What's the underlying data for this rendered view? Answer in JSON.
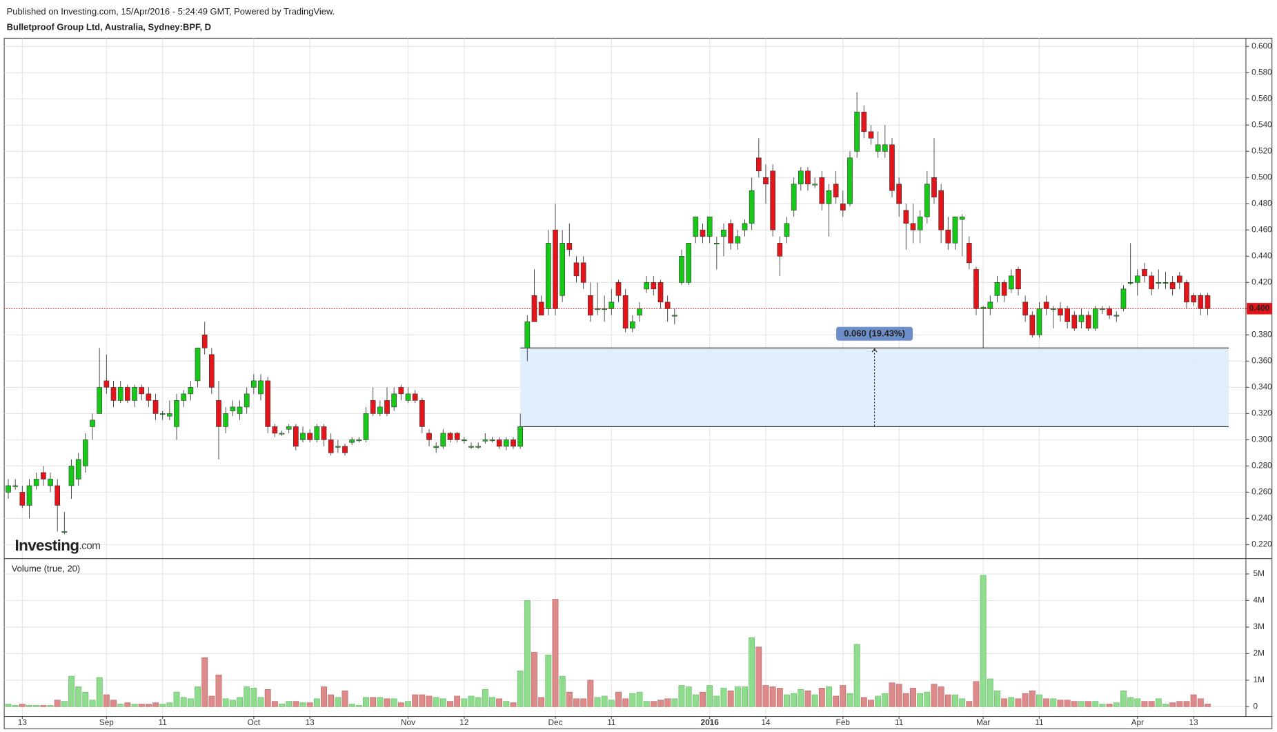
{
  "chart_data": {
    "type": "candlestick",
    "published": "Published on Investing.com, 15/Apr/2016 - 5:24:49 GMT, Powered by TradingView.",
    "title": "Bulletproof Group Ltd, Australia, Sydney:BPF, D",
    "volume_title": "Volume (true, 20)",
    "logo_text": "Investing",
    "logo_suffix": ".com",
    "up_color": "#17c917",
    "down_color": "#e3141a",
    "volume_up_color": "#8fdc8f",
    "volume_down_color": "#dc8a8a",
    "grid": true,
    "categories": [
      null,
      null,
      "13",
      null,
      null,
      null,
      null,
      null,
      null,
      null,
      null,
      null,
      null,
      null,
      "Sep",
      null,
      null,
      null,
      null,
      null,
      null,
      null,
      "11",
      null,
      null,
      null,
      null,
      null,
      null,
      null,
      null,
      null,
      null,
      null,
      null,
      "Oct",
      null,
      null,
      null,
      null,
      null,
      null,
      null,
      "13",
      null,
      null,
      null,
      null,
      null,
      null,
      null,
      null,
      null,
      null,
      null,
      null,
      null,
      "Nov",
      null,
      null,
      null,
      null,
      null,
      null,
      null,
      "12",
      null,
      null,
      null,
      null,
      null,
      null,
      null,
      null,
      null,
      null,
      null,
      null,
      "Dec",
      null,
      null,
      null,
      null,
      null,
      null,
      null,
      "11",
      null,
      null,
      null,
      null,
      null,
      null,
      null,
      null,
      null,
      null,
      null,
      null,
      null,
      "2016",
      null,
      null,
      null,
      null,
      null,
      null,
      null,
      "14",
      null,
      null,
      null,
      null,
      null,
      null,
      null,
      null,
      null,
      null,
      "Feb",
      null,
      null,
      null,
      null,
      null,
      null,
      null,
      "11",
      null,
      null,
      null,
      null,
      null,
      null,
      null,
      null,
      null,
      null,
      null,
      "Mar",
      null,
      null,
      null,
      null,
      null,
      null,
      null,
      "11",
      null,
      null,
      null,
      null,
      null,
      null,
      null,
      null,
      null,
      null,
      null,
      null,
      null,
      "Apr",
      null,
      null,
      null,
      null,
      null,
      null,
      null,
      "13",
      null,
      null
    ],
    "open": [
      0.26,
      0.265,
      0.26,
      0.25,
      0.265,
      0.275,
      0.265,
      0.265,
      0.23,
      0.265,
      0.27,
      0.28,
      0.31,
      0.32,
      0.345,
      0.34,
      0.33,
      0.34,
      0.33,
      0.34,
      0.335,
      0.33,
      0.32,
      0.318,
      0.31,
      0.33,
      0.335,
      0.345,
      0.38,
      0.365,
      0.33,
      0.31,
      0.322,
      0.32,
      0.325,
      0.34,
      0.335,
      0.345,
      0.31,
      0.305,
      0.308,
      0.31,
      0.3,
      0.305,
      0.3,
      0.31,
      0.3,
      0.295,
      0.295,
      0.298,
      0.3,
      0.3,
      0.33,
      0.32,
      0.33,
      0.325,
      0.34,
      0.33,
      0.335,
      0.33,
      0.305,
      0.294,
      0.295,
      0.305,
      0.305,
      0.3,
      0.295,
      0.295,
      0.299,
      0.3,
      0.3,
      0.295,
      0.3,
      0.295,
      0.37,
      0.41,
      0.405,
      0.4,
      0.46,
      0.41,
      0.45,
      0.435,
      0.435,
      0.41,
      0.4,
      0.4,
      0.4,
      0.42,
      0.41,
      0.385,
      0.395,
      0.415,
      0.42,
      0.42,
      0.405,
      0.395,
      0.42,
      0.42,
      0.455,
      0.46,
      0.455,
      0.45,
      0.455,
      0.465,
      0.45,
      0.46,
      0.465,
      0.515,
      0.5,
      0.505,
      0.45,
      0.455,
      0.475,
      0.495,
      0.505,
      0.495,
      0.5,
      0.48,
      0.495,
      0.48,
      0.48,
      0.52,
      0.55,
      0.535,
      0.52,
      0.52,
      0.525,
      0.495,
      0.475,
      0.465,
      0.46,
      0.47,
      0.5,
      0.49,
      0.46,
      0.45,
      0.468,
      0.45,
      0.43,
      0.4,
      0.4,
      0.41,
      0.42,
      0.415,
      0.43,
      0.405,
      0.395,
      0.38,
      0.405,
      0.4,
      0.4,
      0.4,
      0.395,
      0.39,
      0.395,
      0.385,
      0.4,
      0.4,
      0.395,
      0.4,
      0.42,
      0.42,
      0.43,
      0.425,
      0.42,
      0.42,
      0.42,
      0.425,
      0.42,
      0.41,
      0.41,
      0.41
    ],
    "high": [
      0.27,
      0.27,
      0.265,
      0.27,
      0.275,
      0.28,
      0.275,
      0.27,
      0.245,
      0.285,
      0.29,
      0.305,
      0.32,
      0.37,
      0.365,
      0.345,
      0.345,
      0.342,
      0.342,
      0.342,
      0.34,
      0.335,
      0.322,
      0.33,
      0.335,
      0.338,
      0.345,
      0.37,
      0.39,
      0.37,
      0.345,
      0.325,
      0.33,
      0.33,
      0.34,
      0.35,
      0.35,
      0.348,
      0.312,
      0.307,
      0.312,
      0.312,
      0.31,
      0.308,
      0.312,
      0.312,
      0.305,
      0.3,
      0.297,
      0.302,
      0.302,
      0.325,
      0.34,
      0.33,
      0.34,
      0.34,
      0.342,
      0.34,
      0.338,
      0.332,
      0.308,
      0.298,
      0.308,
      0.306,
      0.306,
      0.302,
      0.298,
      0.298,
      0.305,
      0.302,
      0.302,
      0.302,
      0.302,
      0.32,
      0.395,
      0.43,
      0.41,
      0.46,
      0.48,
      0.46,
      0.465,
      0.44,
      0.44,
      0.42,
      0.42,
      0.41,
      0.415,
      0.422,
      0.415,
      0.395,
      0.405,
      0.425,
      0.425,
      0.422,
      0.41,
      0.4,
      0.445,
      0.45,
      0.47,
      0.465,
      0.47,
      0.455,
      0.465,
      0.468,
      0.46,
      0.468,
      0.5,
      0.53,
      0.51,
      0.51,
      0.455,
      0.47,
      0.5,
      0.508,
      0.508,
      0.5,
      0.505,
      0.495,
      0.505,
      0.49,
      0.52,
      0.565,
      0.555,
      0.54,
      0.535,
      0.54,
      0.53,
      0.5,
      0.48,
      0.48,
      0.475,
      0.505,
      0.53,
      0.495,
      0.47,
      0.47,
      0.472,
      0.455,
      0.432,
      0.402,
      0.41,
      0.425,
      0.422,
      0.43,
      0.432,
      0.41,
      0.398,
      0.405,
      0.41,
      0.402,
      0.405,
      0.402,
      0.398,
      0.4,
      0.398,
      0.402,
      0.402,
      0.402,
      0.398,
      0.418,
      0.45,
      0.43,
      0.435,
      0.428,
      0.43,
      0.428,
      0.425,
      0.428,
      0.422,
      0.412,
      0.412,
      0.412
    ],
    "low": [
      0.255,
      0.262,
      0.248,
      0.24,
      0.262,
      0.265,
      0.26,
      0.23,
      0.228,
      0.255,
      0.265,
      0.275,
      0.3,
      0.32,
      0.335,
      0.325,
      0.328,
      0.328,
      0.325,
      0.33,
      0.325,
      0.315,
      0.315,
      0.315,
      0.3,
      0.325,
      0.33,
      0.34,
      0.365,
      0.335,
      0.285,
      0.305,
      0.318,
      0.315,
      0.32,
      0.335,
      0.33,
      0.305,
      0.302,
      0.303,
      0.305,
      0.292,
      0.298,
      0.298,
      0.298,
      0.295,
      0.288,
      0.29,
      0.288,
      0.296,
      0.298,
      0.298,
      0.318,
      0.318,
      0.318,
      0.322,
      0.33,
      0.328,
      0.328,
      0.305,
      0.295,
      0.29,
      0.293,
      0.298,
      0.298,
      0.297,
      0.293,
      0.293,
      0.297,
      0.298,
      0.293,
      0.292,
      0.293,
      0.293,
      0.36,
      0.39,
      0.395,
      0.395,
      0.395,
      0.405,
      0.44,
      0.42,
      0.415,
      0.39,
      0.395,
      0.39,
      0.395,
      0.405,
      0.382,
      0.382,
      0.39,
      0.412,
      0.41,
      0.4,
      0.39,
      0.388,
      0.418,
      0.418,
      0.45,
      0.45,
      0.45,
      0.43,
      0.44,
      0.445,
      0.445,
      0.455,
      0.46,
      0.5,
      0.48,
      0.455,
      0.425,
      0.45,
      0.47,
      0.49,
      0.49,
      0.492,
      0.475,
      0.455,
      0.48,
      0.47,
      0.478,
      0.515,
      0.53,
      0.525,
      0.515,
      0.515,
      0.485,
      0.47,
      0.445,
      0.45,
      0.45,
      0.465,
      0.48,
      0.45,
      0.445,
      0.445,
      0.44,
      0.43,
      0.395,
      0.37,
      0.395,
      0.405,
      0.405,
      0.412,
      0.41,
      0.39,
      0.378,
      0.378,
      0.395,
      0.385,
      0.39,
      0.385,
      0.383,
      0.385,
      0.383,
      0.383,
      0.396,
      0.392,
      0.39,
      0.398,
      0.418,
      0.41,
      0.42,
      0.41,
      0.415,
      0.415,
      0.41,
      0.415,
      0.4,
      0.402,
      0.395,
      0.395
    ],
    "close": [
      0.265,
      0.265,
      0.25,
      0.265,
      0.27,
      0.27,
      0.27,
      0.25,
      0.23,
      0.28,
      0.285,
      0.3,
      0.315,
      0.34,
      0.34,
      0.33,
      0.34,
      0.33,
      0.34,
      0.335,
      0.33,
      0.32,
      0.32,
      0.32,
      0.33,
      0.335,
      0.34,
      0.37,
      0.37,
      0.34,
      0.31,
      0.32,
      0.325,
      0.325,
      0.335,
      0.345,
      0.345,
      0.31,
      0.305,
      0.305,
      0.31,
      0.295,
      0.305,
      0.3,
      0.31,
      0.3,
      0.29,
      0.295,
      0.29,
      0.3,
      0.3,
      0.32,
      0.32,
      0.325,
      0.32,
      0.335,
      0.335,
      0.335,
      0.33,
      0.31,
      0.3,
      0.295,
      0.305,
      0.3,
      0.3,
      0.3,
      0.295,
      0.295,
      0.3,
      0.3,
      0.295,
      0.3,
      0.295,
      0.31,
      0.39,
      0.39,
      0.395,
      0.45,
      0.4,
      0.45,
      0.445,
      0.425,
      0.42,
      0.395,
      0.4,
      0.4,
      0.405,
      0.41,
      0.385,
      0.39,
      0.4,
      0.42,
      0.415,
      0.405,
      0.4,
      0.395,
      0.44,
      0.45,
      0.47,
      0.455,
      0.47,
      0.45,
      0.46,
      0.45,
      0.455,
      0.465,
      0.49,
      0.505,
      0.495,
      0.46,
      0.44,
      0.465,
      0.495,
      0.505,
      0.495,
      0.495,
      0.48,
      0.49,
      0.485,
      0.475,
      0.515,
      0.55,
      0.535,
      0.53,
      0.525,
      0.525,
      0.49,
      0.48,
      0.465,
      0.46,
      0.47,
      0.495,
      0.485,
      0.46,
      0.45,
      0.47,
      0.47,
      0.435,
      0.4,
      0.401,
      0.405,
      0.42,
      0.41,
      0.425,
      0.415,
      0.395,
      0.38,
      0.4,
      0.4,
      0.4,
      0.395,
      0.39,
      0.385,
      0.395,
      0.385,
      0.4,
      0.4,
      0.395,
      0.395,
      0.415,
      0.42,
      0.425,
      0.425,
      0.415,
      0.42,
      0.42,
      0.415,
      0.42,
      0.405,
      0.405,
      0.4,
      0.4
    ],
    "volume": [
      100000,
      50000,
      100000,
      50000,
      50000,
      50000,
      50000,
      250000,
      200000,
      1150000,
      750000,
      550000,
      250000,
      1100000,
      450000,
      250000,
      100000,
      150000,
      100000,
      100000,
      100000,
      150000,
      100000,
      150000,
      550000,
      350000,
      300000,
      750000,
      1850000,
      400000,
      1200000,
      300000,
      250000,
      350000,
      750000,
      700000,
      350000,
      650000,
      200000,
      100000,
      200000,
      200000,
      150000,
      150000,
      300000,
      750000,
      450000,
      350000,
      600000,
      100000,
      50000,
      350000,
      350000,
      350000,
      300000,
      300000,
      150000,
      200000,
      450000,
      450000,
      400000,
      350000,
      300000,
      200000,
      400000,
      300000,
      400000,
      350000,
      650000,
      350000,
      300000,
      200000,
      150000,
      1350000,
      4000000,
      2050000,
      350000,
      1950000,
      4050000,
      1150000,
      550000,
      300000,
      300000,
      1000000,
      350000,
      400000,
      250000,
      550000,
      300000,
      500000,
      550000,
      200000,
      200000,
      250000,
      300000,
      300000,
      800000,
      750000,
      450000,
      550000,
      800000,
      400000,
      700000,
      600000,
      750000,
      750000,
      2600000,
      2250000,
      800000,
      750000,
      700000,
      450000,
      500000,
      650000,
      600000,
      450000,
      700000,
      750000,
      400000,
      800000,
      500000,
      2350000,
      350000,
      250000,
      400000,
      500000,
      900000,
      850000,
      500000,
      700000,
      500000,
      550000,
      850000,
      750000,
      450000,
      450000,
      300000,
      200000,
      950000,
      4950000,
      1050000,
      600000,
      300000,
      350000,
      300000,
      500000,
      600000,
      450000,
      300000,
      300000,
      250000,
      250000,
      200000,
      200000,
      200000,
      200000,
      100000,
      100000,
      150000,
      600000,
      350000,
      300000,
      200000,
      200000,
      300000,
      100000,
      150000,
      200000,
      200000,
      450000,
      300000,
      100000
    ],
    "ylim": [
      0.2094,
      0.6062
    ],
    "yticks": [
      {
        "value": 0.22,
        "label": "0.220"
      },
      {
        "value": 0.24,
        "label": "0.240"
      },
      {
        "value": 0.26,
        "label": "0.260"
      },
      {
        "value": 0.28,
        "label": "0.280"
      },
      {
        "value": 0.3,
        "label": "0.300"
      },
      {
        "value": 0.32,
        "label": "0.320"
      },
      {
        "value": 0.34,
        "label": "0.340"
      },
      {
        "value": 0.36,
        "label": "0.360"
      },
      {
        "value": 0.38,
        "label": "0.380"
      },
      {
        "value": 0.4,
        "label": "0.400"
      },
      {
        "value": 0.42,
        "label": "0.420"
      },
      {
        "value": 0.44,
        "label": "0.440"
      },
      {
        "value": 0.46,
        "label": "0.460"
      },
      {
        "value": 0.48,
        "label": "0.480"
      },
      {
        "value": 0.5,
        "label": "0.500"
      },
      {
        "value": 0.52,
        "label": "0.520"
      },
      {
        "value": 0.54,
        "label": "0.540"
      },
      {
        "value": 0.56,
        "label": "0.560"
      },
      {
        "value": 0.58,
        "label": "0.580"
      },
      {
        "value": 0.6,
        "label": "0.600"
      }
    ],
    "y2lim": [
      -370000,
      5580000
    ],
    "y2ticks": [
      0,
      {
        "value": 1000000,
        "label": "1M"
      },
      {
        "value": 2000000,
        "label": "2M"
      },
      {
        "value": 3000000,
        "label": "3M"
      },
      {
        "value": 4000000,
        "label": "4M"
      },
      {
        "value": 5000000,
        "label": "5M"
      }
    ],
    "last_price": {
      "value": 0.4,
      "label": "0.400"
    },
    "measure": {
      "from": 0.31,
      "to": 0.37,
      "start": 73,
      "end": 174,
      "label": "0.060 (19.43%)"
    }
  }
}
